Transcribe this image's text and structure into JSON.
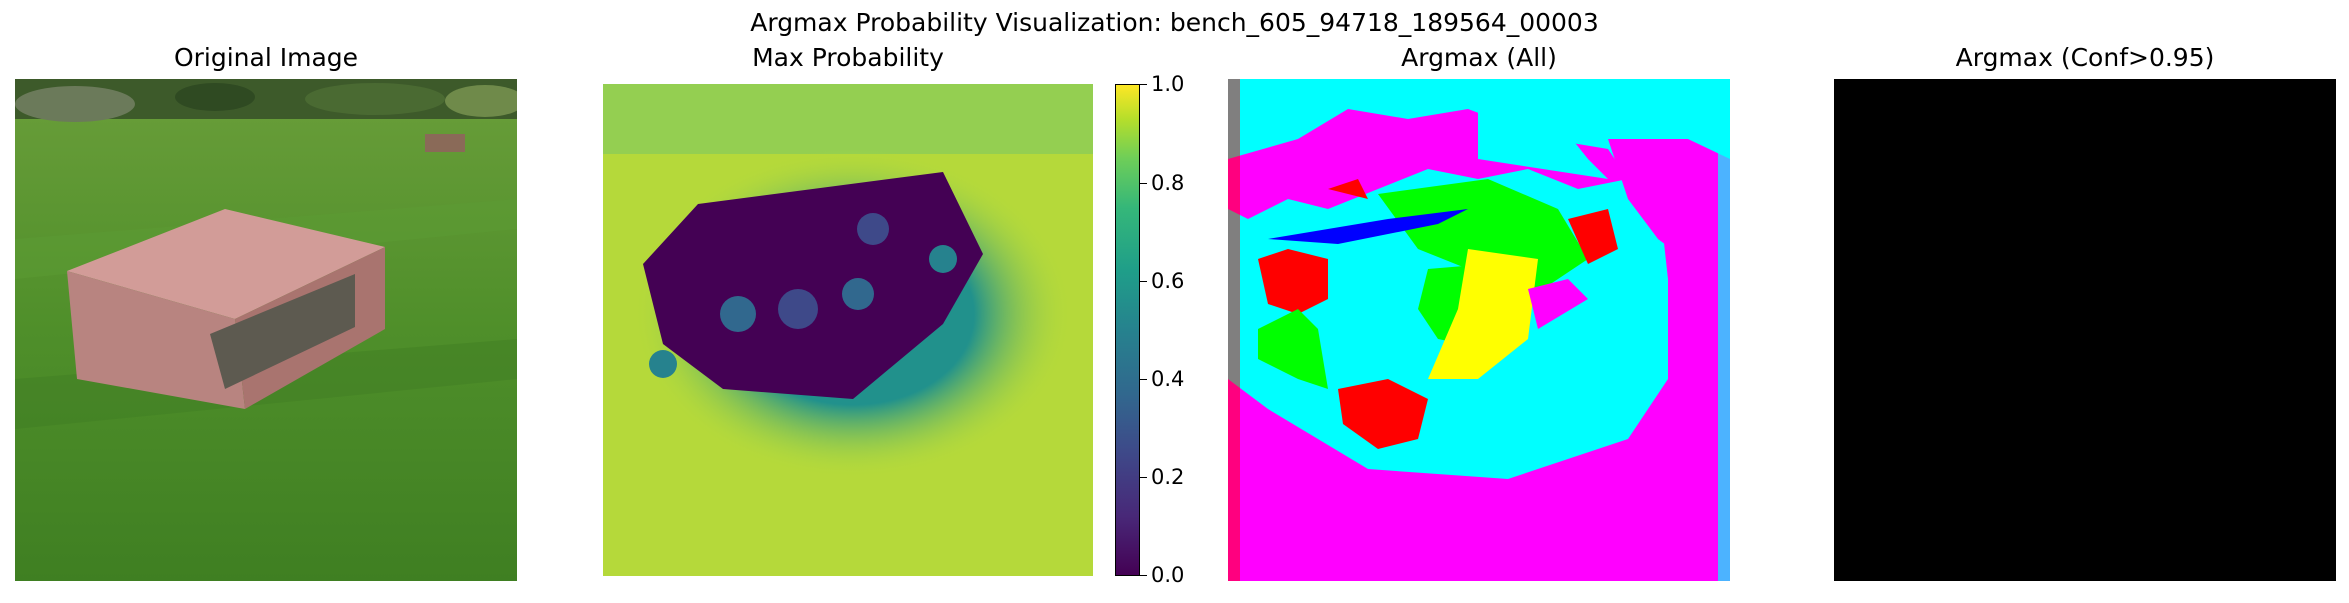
{
  "figure": {
    "suptitle": "Argmax Probability Visualization: bench_605_94718_189564_00003",
    "panels": [
      {
        "title": "Original Image"
      },
      {
        "title": "Max Probability"
      },
      {
        "title": "Argmax (All)"
      },
      {
        "title": "Argmax (Conf>0.95)"
      }
    ],
    "colorbar": {
      "ticks": [
        "0.0",
        "0.2",
        "0.4",
        "0.6",
        "0.8",
        "1.0"
      ],
      "range": [
        0,
        1
      ],
      "colormap": "viridis"
    },
    "colors": {
      "grass": "#4f8f2a",
      "bench": "#c6908c",
      "viridis_low": "#440154",
      "viridis_mid": "#21918c",
      "viridis_high": "#c4e034",
      "seg_magenta": "#ff00ff",
      "seg_cyan": "#00ffff",
      "seg_red": "#ff0000",
      "seg_green": "#00ff00",
      "seg_yellow": "#ffff00",
      "seg_blue": "#0000ff",
      "black": "#000000"
    }
  }
}
